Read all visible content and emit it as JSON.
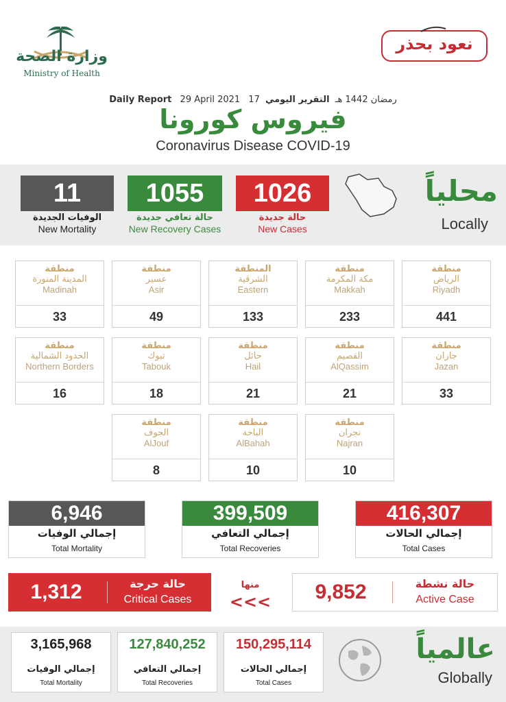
{
  "header": {
    "ministry_ar": "وزارة الصحة",
    "ministry_en": "Ministry of Health",
    "campaign": "نعود بحذر",
    "report_label_ar": "التقرير اليومي",
    "report_hijri": "17 رمضان 1442 هـ",
    "report_gregorian": "29 April 2021",
    "report_label_en": "Daily Report",
    "title_ar": "فيروس كورونا",
    "title_en": "Coronavirus Disease COVID-19"
  },
  "local": {
    "heading_ar": "محلياً",
    "heading_en": "Locally",
    "new_cases": {
      "value": "1026",
      "label_ar": "حالة جديدة",
      "label_en": "New Cases"
    },
    "new_recovery": {
      "value": "1055",
      "label_ar": "حالة تعافي جديدة",
      "label_en": "New Recovery Cases"
    },
    "new_mortality": {
      "value": "11",
      "label_ar": "الوفيات الجديدة",
      "label_en": "New Mortality"
    }
  },
  "regions": [
    {
      "word": "منطقة",
      "name_ar": "الرياض",
      "name_en": "Riyadh",
      "count": "441"
    },
    {
      "word": "منطقة",
      "name_ar": "مكة المكرمة",
      "name_en": "Makkah",
      "count": "233"
    },
    {
      "word": "المنطقة",
      "name_ar": "الشرقية",
      "name_en": "Eastern",
      "count": "133"
    },
    {
      "word": "منطقة",
      "name_ar": "عسير",
      "name_en": "Asir",
      "count": "49"
    },
    {
      "word": "منطقة",
      "name_ar": "المدينة المنورة",
      "name_en": "Madinah",
      "count": "33"
    },
    {
      "word": "منطقة",
      "name_ar": "جازان",
      "name_en": "Jazan",
      "count": "33"
    },
    {
      "word": "منطقة",
      "name_ar": "القصيم",
      "name_en": "AlQassim",
      "count": "21"
    },
    {
      "word": "منطقة",
      "name_ar": "حائل",
      "name_en": "Hail",
      "count": "21"
    },
    {
      "word": "منطقة",
      "name_ar": "تبوك",
      "name_en": "Tabouk",
      "count": "18"
    },
    {
      "word": "منطقة",
      "name_ar": "الحدود الشمالية",
      "name_en": "Northern Borders",
      "count": "16"
    },
    {
      "word": "منطقة",
      "name_ar": "نجران",
      "name_en": "Najran",
      "count": "10"
    },
    {
      "word": "منطقة",
      "name_ar": "الباحة",
      "name_en": "AlBahah",
      "count": "10"
    },
    {
      "word": "منطقة",
      "name_ar": "الجوف",
      "name_en": "AlJouf",
      "count": "8"
    }
  ],
  "totals": {
    "cases": {
      "value": "416,307",
      "label_ar": "إجمالي الحالات",
      "label_en": "Total Cases"
    },
    "recoveries": {
      "value": "399,509",
      "label_ar": "إجمالي التعافي",
      "label_en": "Total Recoveries"
    },
    "mortality": {
      "value": "6,946",
      "label_ar": "إجمالي الوفيات",
      "label_en": "Total Mortality"
    }
  },
  "active": {
    "value": "9,852",
    "label_ar": "حالة نشطة",
    "label_en": "Active Case"
  },
  "of_which_ar": "منها",
  "arrows": "<<<",
  "critical": {
    "value": "1,312",
    "label_ar": "حالة حرجة",
    "label_en": "Critical Cases"
  },
  "global": {
    "heading_ar": "عالمياً",
    "heading_en": "Globally",
    "cases": {
      "value": "150,295,114",
      "label_ar": "إجمالي الحالات",
      "label_en": "Total Cases"
    },
    "recoveries": {
      "value": "127,840,252",
      "label_ar": "إجمالي التعافي",
      "label_en": "Total Recoveries"
    },
    "mortality": {
      "value": "3,165,968",
      "label_ar": "إجمالي الوفيات",
      "label_en": "Total Mortality"
    }
  },
  "colors": {
    "red": "#d52f33",
    "green": "#3a8a3e",
    "gray": "#575757",
    "gold": "#c9a46b"
  }
}
